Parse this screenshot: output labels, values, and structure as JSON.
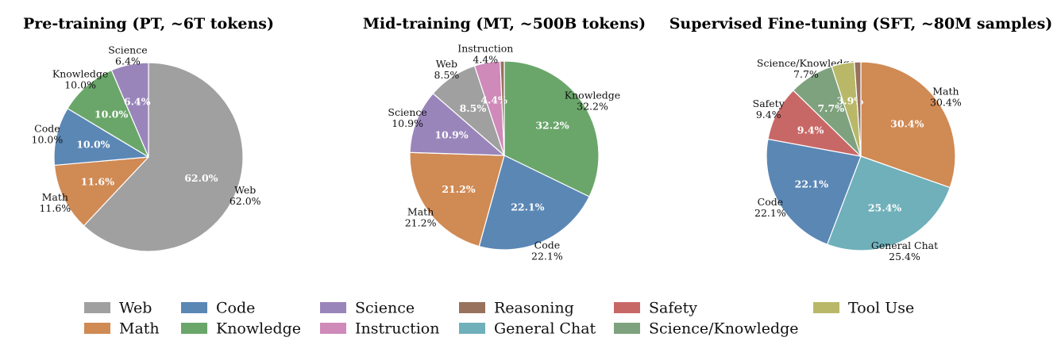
{
  "colors": {
    "Web": "#a0a0a0",
    "Math": "#d08a54",
    "Code": "#5b87b5",
    "Knowledge": "#6aa66a",
    "Science": "#9a85bb",
    "Instruction": "#cf8ab9",
    "Reasoning": "#98725d",
    "General Chat": "#6fb0ba",
    "Safety": "#c86866",
    "Science/Knowledge": "#7ea27e",
    "Tool Use": "#b8b868"
  },
  "legend": {
    "columns": [
      [
        "Web",
        "Math"
      ],
      [
        "Code",
        "Knowledge"
      ],
      [
        "Science",
        "Instruction"
      ],
      [
        "Reasoning",
        "General Chat"
      ],
      [
        "Safety",
        "Science/Knowledge"
      ],
      [
        "Tool Use"
      ]
    ]
  },
  "chart_data": [
    {
      "type": "pie",
      "title": "Pre-training (PT, ~6T tokens)",
      "start_angle": 90,
      "direction": "clockwise",
      "slices": [
        {
          "label": "Web",
          "value": 62.0,
          "pct_label": "62.0%",
          "outer_label": [
            "Web",
            "62.0%"
          ]
        },
        {
          "label": "Math",
          "value": 11.6,
          "pct_label": "11.6%",
          "outer_label": [
            "Math",
            "11.6%"
          ]
        },
        {
          "label": "Code",
          "value": 10.0,
          "pct_label": "10.0%",
          "outer_label": [
            "Code",
            "10.0%"
          ]
        },
        {
          "label": "Knowledge",
          "value": 10.0,
          "pct_label": "10.0%",
          "outer_label": [
            "Knowledge",
            "10.0%"
          ]
        },
        {
          "label": "Science",
          "value": 6.4,
          "pct_label": "6.4%",
          "outer_label": [
            "Science",
            "6.4%"
          ]
        }
      ]
    },
    {
      "type": "pie",
      "title": "Mid-training (MT, ~500B tokens)",
      "start_angle": 90,
      "direction": "clockwise",
      "slices": [
        {
          "label": "Knowledge",
          "value": 32.2,
          "pct_label": "32.2%",
          "outer_label": [
            "Knowledge",
            "32.2%"
          ]
        },
        {
          "label": "Code",
          "value": 22.1,
          "pct_label": "22.1%",
          "outer_label": [
            "Code",
            "22.1%"
          ]
        },
        {
          "label": "Math",
          "value": 21.2,
          "pct_label": "21.2%",
          "outer_label": [
            "Math",
            "21.2%"
          ]
        },
        {
          "label": "Science",
          "value": 10.9,
          "pct_label": "10.9%",
          "outer_label": [
            "Science",
            "10.9%"
          ]
        },
        {
          "label": "Web",
          "value": 8.5,
          "pct_label": "8.5%",
          "outer_label": [
            "Web",
            "8.5%"
          ]
        },
        {
          "label": "Instruction",
          "value": 4.4,
          "pct_label": "4.4%",
          "outer_label": [
            "Instruction",
            "4.4%"
          ]
        },
        {
          "label": "Reasoning",
          "value": 0.7,
          "pct_label": "",
          "outer_label": []
        }
      ]
    },
    {
      "type": "pie",
      "title": "Supervised Fine-tuning (SFT, ~80M samples)",
      "start_angle": 90,
      "direction": "clockwise",
      "slices": [
        {
          "label": "Math",
          "value": 30.4,
          "pct_label": "30.4%",
          "outer_label": [
            "Math",
            "30.4%"
          ]
        },
        {
          "label": "General Chat",
          "value": 25.4,
          "pct_label": "25.4%",
          "outer_label": [
            "General Chat",
            "25.4%"
          ]
        },
        {
          "label": "Code",
          "value": 22.1,
          "pct_label": "22.1%",
          "outer_label": [
            "Code",
            "22.1%"
          ]
        },
        {
          "label": "Safety",
          "value": 9.4,
          "pct_label": "9.4%",
          "outer_label": [
            "Safety",
            "9.4%"
          ]
        },
        {
          "label": "Science/Knowledge",
          "value": 7.7,
          "pct_label": "7.7%",
          "outer_label": [
            "Science/Knowledge",
            "7.7%"
          ]
        },
        {
          "label": "Tool Use",
          "value": 3.9,
          "pct_label": "3.9%",
          "outer_label": []
        },
        {
          "label": "Reasoning",
          "value": 1.1,
          "pct_label": "",
          "outer_label": []
        }
      ]
    }
  ]
}
